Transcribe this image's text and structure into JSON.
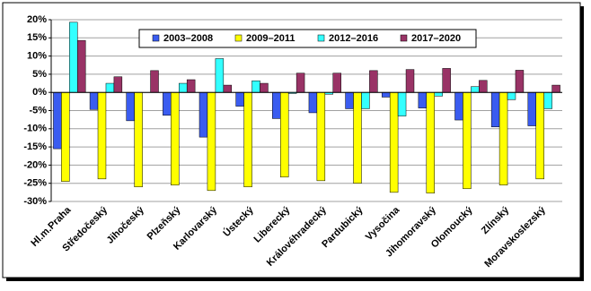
{
  "chart_data": {
    "type": "bar",
    "categories": [
      "Hl.m.Praha",
      "Středočeský",
      "Jihočeský",
      "Plzeňský",
      "Karlovarský",
      "Ústecký",
      "Liberecký",
      "Královéhradecký",
      "Pardubický",
      "Vysočina",
      "Jihomoravský",
      "Olomoucký",
      "Zlínský",
      "Moravskoslezský"
    ],
    "series": [
      {
        "name": "2003–2008",
        "color": "#3a5cf0",
        "values": [
          -15.5,
          -4.7,
          -7.8,
          -6.3,
          -12.3,
          -3.8,
          -7.2,
          -5.6,
          -4.5,
          -1.3,
          -4.3,
          -7.6,
          -9.5,
          -9.2
        ]
      },
      {
        "name": "2009–2011",
        "color": "#ffff00",
        "values": [
          -24.5,
          -23.8,
          -26,
          -25.5,
          -27,
          -26,
          -23.3,
          -24.3,
          -25,
          -27.5,
          -27.7,
          -26.5,
          -25.5,
          -23.8
        ]
      },
      {
        "name": "2012–2016",
        "color": "#33ffff",
        "values": [
          19.3,
          2.5,
          0,
          2.5,
          9.3,
          3.2,
          -0.3,
          -0.5,
          -4.5,
          -6.5,
          -1,
          1.6,
          -2,
          -4.5
        ]
      },
      {
        "name": "2017–2020",
        "color": "#993366",
        "values": [
          14.3,
          4.3,
          6,
          3.5,
          2,
          2.5,
          5.3,
          5.3,
          6,
          6.3,
          6.6,
          3.3,
          6.1,
          2
        ]
      }
    ],
    "ylim": [
      -30,
      20
    ],
    "yticks": [
      {
        "value": -30,
        "label": "-30%"
      },
      {
        "value": -25,
        "label": "-25%"
      },
      {
        "value": -20,
        "label": "-20%"
      },
      {
        "value": -15,
        "label": "-15%"
      },
      {
        "value": -10,
        "label": "-10%"
      },
      {
        "value": -5,
        "label": "-5%"
      },
      {
        "value": 0,
        "label": "0%"
      },
      {
        "value": 5,
        "label": "5%"
      },
      {
        "value": 10,
        "label": "10%"
      },
      {
        "value": 15,
        "label": "15%"
      },
      {
        "value": 20,
        "label": "20%"
      }
    ],
    "grid": true
  }
}
